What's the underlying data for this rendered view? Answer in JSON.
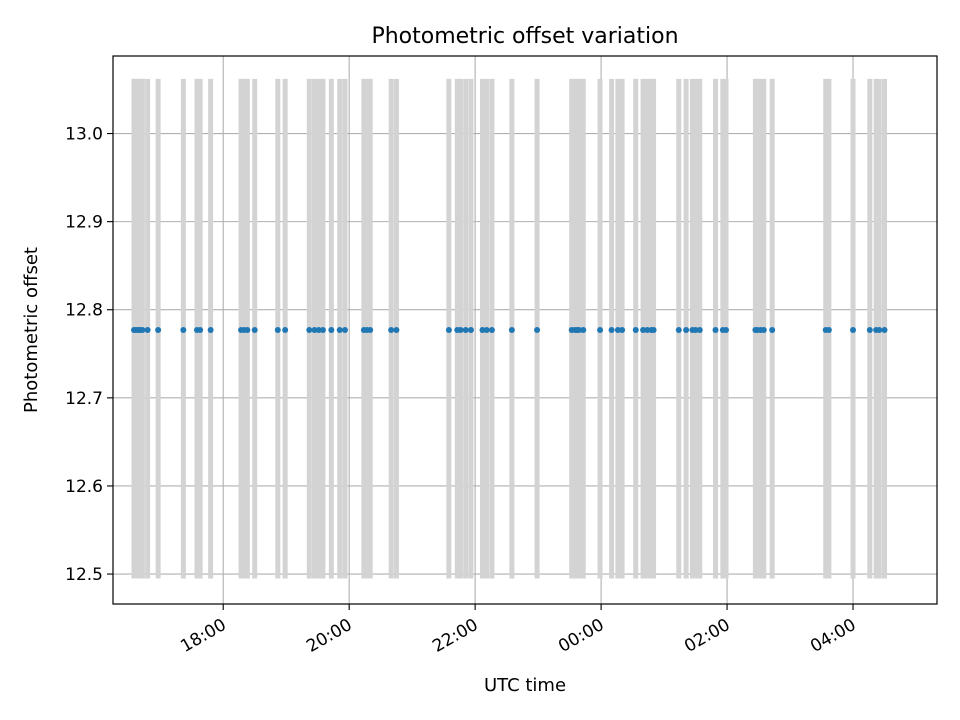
{
  "chart_data": {
    "type": "scatter",
    "title": "Photometric offset variation",
    "xlabel": "UTC time",
    "ylabel": "Photometric offset",
    "x_axis_type": "time",
    "x_tick_labels": [
      "18:00",
      "20:00",
      "22:00",
      "00:00",
      "02:00",
      "04:00"
    ],
    "y_tick_labels": [
      "12.5",
      "12.6",
      "12.7",
      "12.8",
      "12.9",
      "13.0"
    ],
    "xlim": [
      "16:15",
      "05:20"
    ],
    "ylim": [
      12.466,
      13.088
    ],
    "grid": true,
    "band_range": [
      12.495,
      13.062
    ],
    "series": [
      {
        "marker_color": "#1f77b4",
        "marker": "dot",
        "y_constant": 12.777,
        "x": [
          "16:35",
          "16:37",
          "16:39",
          "16:41",
          "16:43",
          "16:48",
          "16:58",
          "17:22",
          "17:35",
          "17:38",
          "17:48",
          "18:17",
          "18:20",
          "18:23",
          "18:30",
          "18:52",
          "18:59",
          "19:22",
          "19:27",
          "19:31",
          "19:35",
          "19:43",
          "19:51",
          "19:56",
          "20:14",
          "20:17",
          "20:20",
          "20:40",
          "20:45",
          "21:35",
          "21:43",
          "21:46",
          "21:51",
          "21:56",
          "22:07",
          "22:11",
          "22:16",
          "22:35",
          "22:59",
          "23:32",
          "23:35",
          "23:37",
          "23:39",
          "23:43",
          "23:59",
          "24:10",
          "24:16",
          "24:20",
          "24:33",
          "24:40",
          "24:44",
          "24:48",
          "24:50",
          "25:14",
          "25:21",
          "25:27",
          "25:30",
          "25:34",
          "25:49",
          "25:56",
          "25:59",
          "26:27",
          "26:29",
          "26:32",
          "26:35",
          "26:43",
          "27:34",
          "27:37",
          "28:00",
          "28:16",
          "28:22",
          "28:25",
          "28:30"
        ],
        "band_color": "#d3d3d3"
      }
    ]
  }
}
